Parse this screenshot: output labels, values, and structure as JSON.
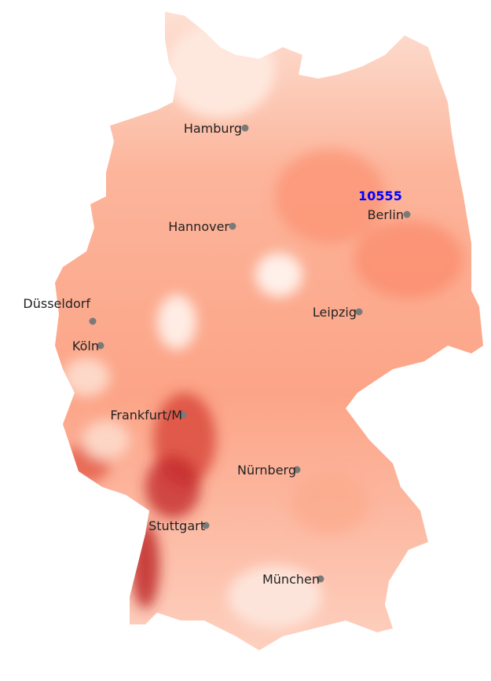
{
  "map": {
    "colors": {
      "low": "#fff2ec",
      "mid": "#fcab8f",
      "high": "#b51f24",
      "marker": "#7a7a7a",
      "highlight": "#0000ff"
    },
    "highlight_label": "10555",
    "cities": [
      {
        "name": "Hamburg"
      },
      {
        "name": "Hannover"
      },
      {
        "name": "Berlin"
      },
      {
        "name": "Düsseldorf"
      },
      {
        "name": "Köln"
      },
      {
        "name": "Leipzig"
      },
      {
        "name": "Frankfurt/M"
      },
      {
        "name": "Nürnberg"
      },
      {
        "name": "Stuttgart"
      },
      {
        "name": "München"
      }
    ]
  }
}
